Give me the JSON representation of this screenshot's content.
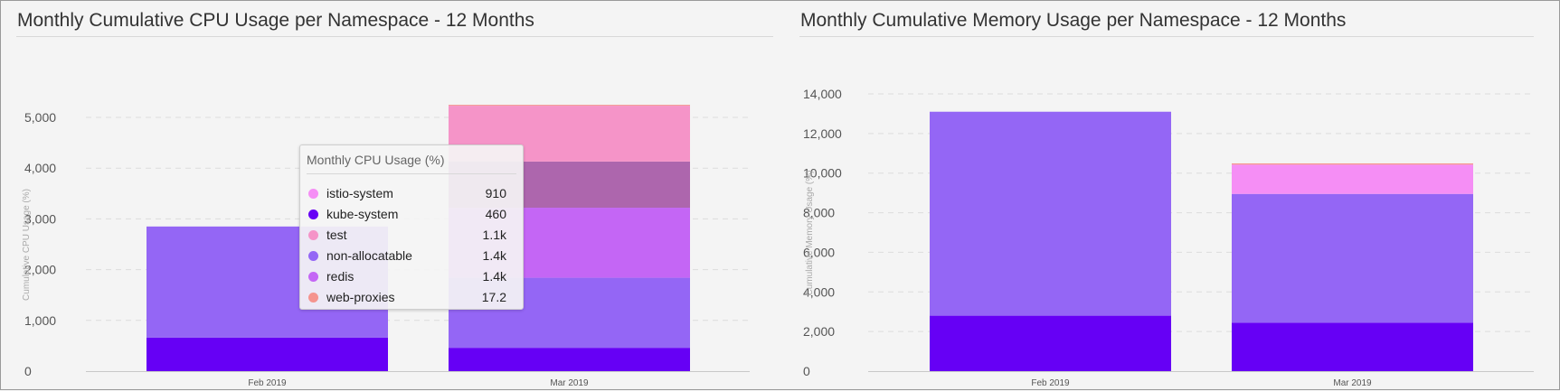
{
  "panels": {
    "cpu": {
      "title": "Monthly Cumulative CPU Usage per Namespace - 12 Months"
    },
    "memory": {
      "title": "Monthly Cumulative Memory Usage per Namespace - 12 Months"
    }
  },
  "colors": {
    "kube-system": "#6600f5",
    "non-allocatable": "#9466f5",
    "redis": "#c466f5",
    "istio-system": "#f58ef5",
    "test": "#f594c8",
    "test-highlighted": "#ad66ad",
    "web-proxies": "#f5948e"
  },
  "tooltip": {
    "title": "Monthly CPU Usage (%)",
    "rows": [
      {
        "name": "istio-system",
        "value": "910",
        "color": "#f58ef5"
      },
      {
        "name": "kube-system",
        "value": "460",
        "color": "#6600f5"
      },
      {
        "name": "test",
        "value": "1.1k",
        "color": "#f594c8"
      },
      {
        "name": "non-allocatable",
        "value": "1.4k",
        "color": "#9466f5"
      },
      {
        "name": "redis",
        "value": "1.4k",
        "color": "#c466f5"
      },
      {
        "name": "web-proxies",
        "value": "17.2",
        "color": "#f5948e"
      }
    ]
  },
  "chart_data": [
    {
      "type": "bar",
      "stacked": true,
      "title": "Monthly Cumulative CPU Usage per Namespace - 12 Months",
      "xlabel": "",
      "ylabel": "Cumulative CPU Usage (%)",
      "categories": [
        "Feb 2019",
        "Mar 2019"
      ],
      "ylim": [
        0,
        5000
      ],
      "yticks": [
        0,
        1000,
        2000,
        3000,
        4000,
        5000
      ],
      "ytick_labels": [
        "0",
        "1,000",
        "2,000",
        "3,000",
        "4,000",
        "5,000"
      ],
      "grid": true,
      "series": [
        {
          "name": "kube-system",
          "values": [
            660,
            460
          ],
          "color": "#6600f5"
        },
        {
          "name": "non-allocatable",
          "values": [
            2190,
            1380
          ],
          "color": "#9466f5"
        },
        {
          "name": "redis",
          "values": [
            0,
            1380
          ],
          "color": "#c466f5"
        },
        {
          "name": "istio-system",
          "values": [
            0,
            910
          ],
          "color": "#ad66ad"
        },
        {
          "name": "test",
          "values": [
            0,
            1100
          ],
          "color": "#f594c8"
        },
        {
          "name": "web-proxies",
          "values": [
            0,
            17.2
          ],
          "color": "#f5948e"
        }
      ]
    },
    {
      "type": "bar",
      "stacked": true,
      "title": "Monthly Cumulative Memory Usage per Namespace - 12 Months",
      "xlabel": "",
      "ylabel": "Cumulative Memory Usage (%)",
      "categories": [
        "Feb 2019",
        "Mar 2019"
      ],
      "ylim": [
        0,
        14000
      ],
      "yticks": [
        0,
        2000,
        4000,
        6000,
        8000,
        10000,
        12000,
        14000
      ],
      "ytick_labels": [
        "0",
        "2,000",
        "4,000",
        "6,000",
        "8,000",
        "10,000",
        "12,000",
        "14,000"
      ],
      "grid": true,
      "series": [
        {
          "name": "kube-system",
          "values": [
            2800,
            2450
          ],
          "color": "#6600f5"
        },
        {
          "name": "non-allocatable",
          "values": [
            10300,
            6500
          ],
          "color": "#9466f5"
        },
        {
          "name": "istio-system",
          "values": [
            0,
            1480
          ],
          "color": "#f58ef5"
        },
        {
          "name": "web-proxies",
          "values": [
            0,
            60
          ],
          "color": "#f5948e"
        }
      ]
    }
  ]
}
